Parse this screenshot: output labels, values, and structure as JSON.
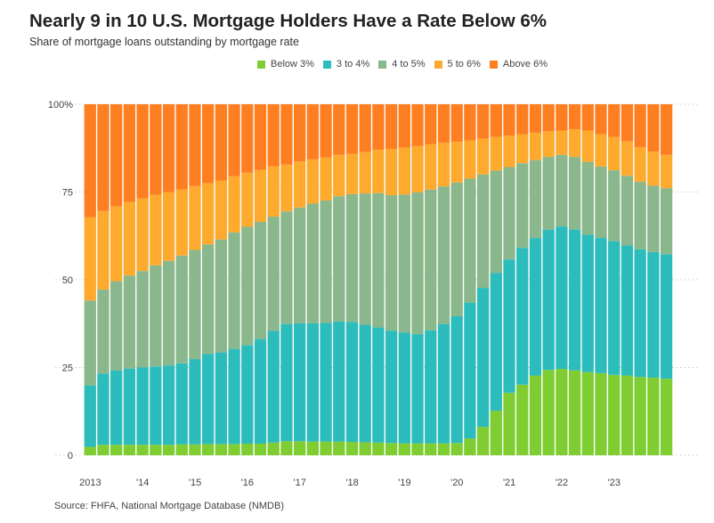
{
  "header": {
    "title": "Nearly 9 in 10 U.S. Mortgage Holders Have a Rate Below 6%",
    "subtitle": "Share of mortgage loans outstanding by mortgage rate"
  },
  "source": "Source: FHFA, National Mortgage Database (NMDB)",
  "chart_data": {
    "type": "bar",
    "stacked": true,
    "title": "Nearly 9 in 10 U.S. Mortgage Holders Have a Rate Below 6%",
    "subtitle": "Share of mortgage loans outstanding by mortgage rate",
    "xlabel": "",
    "ylabel": "",
    "ylim": [
      0,
      100
    ],
    "yticks": [
      0,
      25,
      50,
      75,
      100
    ],
    "ytick_labels": [
      "0",
      "25",
      "50",
      "75",
      "100%"
    ],
    "xtick_labels": [
      {
        "label": "2013",
        "index": 0
      },
      {
        "label": "'14",
        "index": 4
      },
      {
        "label": "'15",
        "index": 8
      },
      {
        "label": "'16",
        "index": 12
      },
      {
        "label": "'17",
        "index": 16
      },
      {
        "label": "'18",
        "index": 20
      },
      {
        "label": "'19",
        "index": 24
      },
      {
        "label": "'20",
        "index": 28
      },
      {
        "label": "'21",
        "index": 32
      },
      {
        "label": "'22",
        "index": 36
      },
      {
        "label": "'23",
        "index": 40
      }
    ],
    "categories": [
      "2013Q1",
      "2013Q2",
      "2013Q3",
      "2013Q4",
      "2014Q1",
      "2014Q2",
      "2014Q3",
      "2014Q4",
      "2015Q1",
      "2015Q2",
      "2015Q3",
      "2015Q4",
      "2016Q1",
      "2016Q2",
      "2016Q3",
      "2016Q4",
      "2017Q1",
      "2017Q2",
      "2017Q3",
      "2017Q4",
      "2018Q1",
      "2018Q2",
      "2018Q3",
      "2018Q4",
      "2019Q1",
      "2019Q2",
      "2019Q3",
      "2019Q4",
      "2020Q1",
      "2020Q2",
      "2020Q3",
      "2020Q4",
      "2021Q1",
      "2021Q2",
      "2021Q3",
      "2021Q4",
      "2022Q1",
      "2022Q2",
      "2022Q3",
      "2022Q4",
      "2023Q1",
      "2023Q2",
      "2023Q3",
      "2023Q4",
      "2024Q1"
    ],
    "legend_position": "top-right",
    "grid": true,
    "series": [
      {
        "name": "Below 3%",
        "color": "#7fcd32",
        "values": [
          2.4,
          3.0,
          3.0,
          3.0,
          3.0,
          3.0,
          3.0,
          3.1,
          3.1,
          3.2,
          3.2,
          3.2,
          3.3,
          3.3,
          3.6,
          4.0,
          4.0,
          3.9,
          3.9,
          3.9,
          3.8,
          3.7,
          3.6,
          3.5,
          3.4,
          3.4,
          3.4,
          3.4,
          3.5,
          4.8,
          8.1,
          12.7,
          17.8,
          20.1,
          22.7,
          24.3,
          24.6,
          24.2,
          23.7,
          23.4,
          22.9,
          22.7,
          22.3,
          22.1,
          21.8
        ]
      },
      {
        "name": "3 to 4%",
        "color": "#2dbcbc",
        "values": [
          17.5,
          20.3,
          21.2,
          21.7,
          22.0,
          22.3,
          22.6,
          23.1,
          24.3,
          25.7,
          26.1,
          27.1,
          28.1,
          29.8,
          31.8,
          33.4,
          33.6,
          33.7,
          33.8,
          34.2,
          34.2,
          33.5,
          32.8,
          32.0,
          31.6,
          31.1,
          32.2,
          34.0,
          36.1,
          38.7,
          39.6,
          39.2,
          38.0,
          39.0,
          39.2,
          40.0,
          40.6,
          40.1,
          39.2,
          38.5,
          38.1,
          37.1,
          36.4,
          35.8,
          35.5
        ]
      },
      {
        "name": "4 to 5%",
        "color": "#8ab78b",
        "values": [
          24.2,
          23.9,
          25.4,
          26.5,
          27.5,
          28.8,
          29.8,
          30.7,
          31.1,
          31.2,
          32.2,
          33.2,
          33.7,
          33.4,
          32.6,
          32.1,
          33.0,
          34.1,
          34.9,
          35.7,
          36.4,
          37.4,
          38.3,
          38.6,
          39.3,
          40.4,
          40.1,
          39.2,
          38.1,
          35.3,
          32.3,
          29.2,
          26.3,
          24.1,
          22.2,
          20.7,
          20.4,
          20.7,
          20.7,
          20.4,
          20.2,
          19.8,
          19.2,
          18.9,
          18.8
        ]
      },
      {
        "name": "5 to 6%",
        "color": "#fdaa2e",
        "values": [
          23.7,
          22.4,
          21.3,
          21.0,
          20.7,
          20.1,
          19.6,
          18.8,
          18.2,
          17.4,
          16.8,
          16.0,
          15.4,
          14.8,
          14.3,
          13.3,
          13.1,
          12.6,
          12.2,
          11.8,
          11.5,
          11.8,
          12.3,
          13.2,
          13.3,
          13.2,
          12.9,
          12.4,
          11.6,
          10.9,
          10.2,
          9.6,
          9.0,
          8.3,
          7.8,
          7.3,
          6.9,
          7.9,
          8.9,
          9.2,
          9.5,
          9.8,
          9.9,
          9.7,
          9.5
        ]
      },
      {
        "name": "Above 6%",
        "color": "#fd7f22",
        "values": [
          32.2,
          30.4,
          29.1,
          27.8,
          26.8,
          25.8,
          25.0,
          24.3,
          23.3,
          22.5,
          21.7,
          20.5,
          19.5,
          18.7,
          17.7,
          17.2,
          16.3,
          15.7,
          15.2,
          14.4,
          14.1,
          13.6,
          13.0,
          12.7,
          12.4,
          11.9,
          11.4,
          11.0,
          10.7,
          10.3,
          9.8,
          9.3,
          8.9,
          8.5,
          8.1,
          7.7,
          7.5,
          7.1,
          7.5,
          8.5,
          9.3,
          10.6,
          12.2,
          13.5,
          14.4
        ]
      }
    ]
  }
}
